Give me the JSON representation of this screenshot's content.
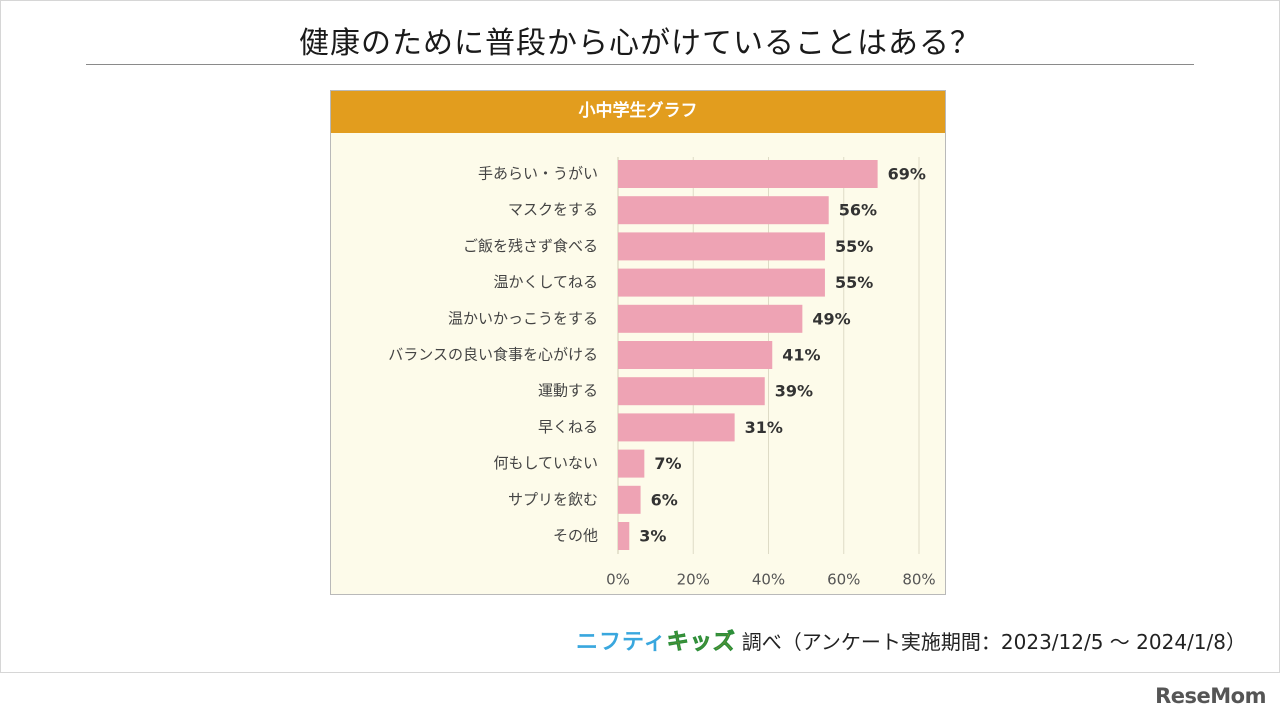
{
  "page": {
    "title": "健康のために普段から心がけていることはある？",
    "footer_logo_nifty": "ニフティ",
    "footer_logo_kids": "キッズ",
    "footer_note": "調べ（アンケート実施期間：2023/12/5 ～ 2024/1/8）",
    "brand": "ReseMom"
  },
  "colors": {
    "header": "#e29d1e",
    "bar": "#eea3b4",
    "plot_bg": "#fdfbea"
  },
  "chart_data": {
    "type": "bar",
    "orientation": "horizontal",
    "title": "小中学生グラフ",
    "categories": [
      "手あらい・うがい",
      "マスクをする",
      "ご飯を残さず食べる",
      "温かくしてねる",
      "温かいかっこうをする",
      "バランスの良い食事を心がける",
      "運動する",
      "早くねる",
      "何もしていない",
      "サプリを飲む",
      "その他"
    ],
    "values": [
      69,
      56,
      55,
      55,
      49,
      41,
      39,
      31,
      7,
      6,
      3
    ],
    "data_labels": [
      "69%",
      "56%",
      "55%",
      "55%",
      "49%",
      "41%",
      "39%",
      "31%",
      "7%",
      "6%",
      "3%"
    ],
    "xlim": [
      0,
      80
    ],
    "x_ticks": [
      0,
      20,
      40,
      60,
      80
    ],
    "x_tick_labels": [
      "0%",
      "20%",
      "40%",
      "60%",
      "80%"
    ],
    "grid": true,
    "legend": "none"
  }
}
